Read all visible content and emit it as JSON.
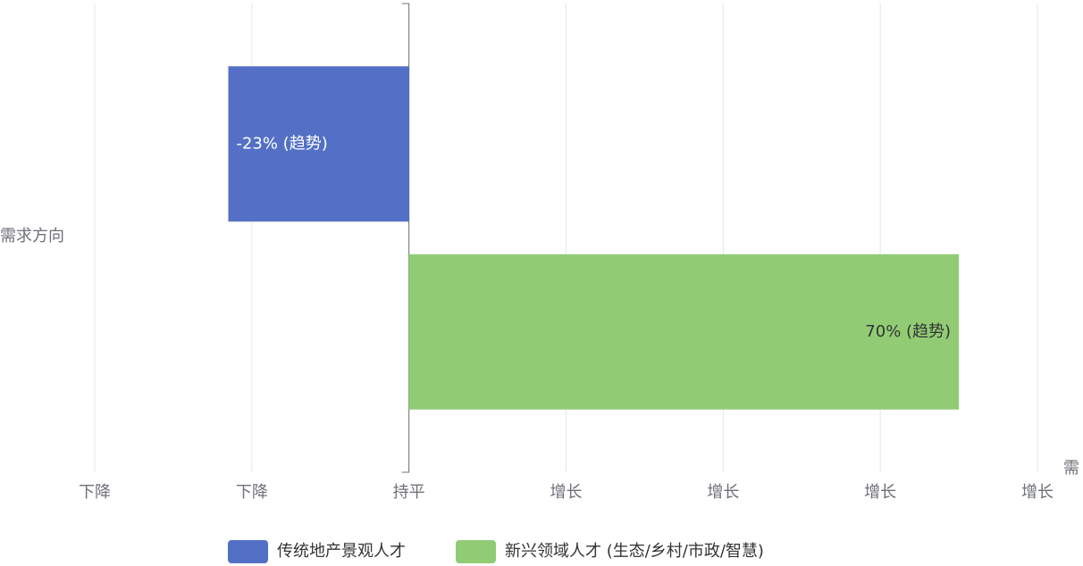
{
  "chart_data": {
    "type": "hbar",
    "ylabel": "需求方向",
    "xlabel": "需",
    "categories": [
      null,
      null
    ],
    "series": [
      {
        "name": "传统地产景观人才",
        "color": "#5470c6",
        "values": [
          -23,
          null
        ],
        "value_labels": [
          "-23% (趋势)",
          null
        ]
      },
      {
        "name": "新兴领域人才 (生态/乡村/市政/智慧)",
        "color": "#91cc75",
        "values": [
          null,
          70
        ],
        "value_labels": [
          null,
          "70% (趋势)"
        ]
      }
    ],
    "xlim": [
      -40,
      80
    ],
    "xticks": [
      {
        "value": -40,
        "label": "下降"
      },
      {
        "value": -20,
        "label": "下降"
      },
      {
        "value": 0,
        "label": "持平"
      },
      {
        "value": 20,
        "label": "增长"
      },
      {
        "value": 40,
        "label": "增长"
      },
      {
        "value": 60,
        "label": "增长"
      },
      {
        "value": 80,
        "label": "增长"
      }
    ],
    "grid": true,
    "legend": "bottom"
  }
}
